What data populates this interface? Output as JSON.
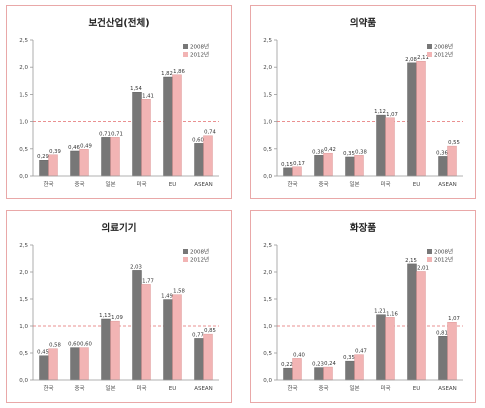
{
  "legend": {
    "labels": [
      "2008년",
      "2012년"
    ]
  },
  "colors": {
    "s2008": "#777777",
    "s2012": "#f2b4b4",
    "border": "#e9a8a8",
    "refline": "#e36c6c",
    "axis": "#999999"
  },
  "chart_data": [
    {
      "type": "bar",
      "title": "보건산업(전체)",
      "categories": [
        "한국",
        "중국",
        "일본",
        "미국",
        "EU",
        "ASEAN"
      ],
      "series": [
        {
          "name": "2008년",
          "values": [
            0.29,
            0.46,
            0.71,
            1.54,
            1.82,
            0.6
          ]
        },
        {
          "name": "2012년",
          "values": [
            0.39,
            0.49,
            0.71,
            1.41,
            1.86,
            0.74
          ]
        }
      ],
      "value_labels": [
        [
          "0,29",
          "0,46",
          "0,71",
          "1,54",
          "1,82",
          "0,60"
        ],
        [
          "0,39",
          "0,49",
          "0,71",
          "1,41",
          "1,86",
          "0,74"
        ]
      ],
      "yticks": [
        "0,0",
        "0,5",
        "1,0",
        "1,5",
        "2,0",
        "2,5"
      ],
      "ylim": [
        0,
        2.5
      ],
      "reference_line": 1.0,
      "legend_position": "top-right",
      "grid": false
    },
    {
      "type": "bar",
      "title": "의약품",
      "categories": [
        "한국",
        "중국",
        "일본",
        "미국",
        "EU",
        "ASEAN"
      ],
      "series": [
        {
          "name": "2008년",
          "values": [
            0.15,
            0.38,
            0.35,
            1.12,
            2.08,
            0.36
          ]
        },
        {
          "name": "2012년",
          "values": [
            0.17,
            0.42,
            0.38,
            1.07,
            2.11,
            0.55
          ]
        }
      ],
      "value_labels": [
        [
          "0,15",
          "0,38",
          "0,35",
          "1,12",
          "2,08",
          "0,36"
        ],
        [
          "0,17",
          "0,42",
          "0,38",
          "1,07",
          "2,11",
          "0,55"
        ]
      ],
      "yticks": [
        "0,0",
        "0,5",
        "1,0",
        "1,5",
        "2,0",
        "2,5"
      ],
      "ylim": [
        0,
        2.5
      ],
      "reference_line": 1.0,
      "legend_position": "top-right",
      "grid": false
    },
    {
      "type": "bar",
      "title": "의료기기",
      "categories": [
        "한국",
        "중국",
        "일본",
        "미국",
        "EU",
        "ASEAN"
      ],
      "series": [
        {
          "name": "2008년",
          "values": [
            0.45,
            0.6,
            1.13,
            2.03,
            1.49,
            0.77
          ]
        },
        {
          "name": "2012년",
          "values": [
            0.58,
            0.6,
            1.09,
            1.77,
            1.58,
            0.85
          ]
        }
      ],
      "value_labels": [
        [
          "0,45",
          "0,60",
          "1,13",
          "2,03",
          "1,49",
          "0,77"
        ],
        [
          "0,58",
          "0,60",
          "1,09",
          "1,77",
          "1,58",
          "0,85"
        ]
      ],
      "yticks": [
        "0,0",
        "0,5",
        "1,0",
        "1,5",
        "2,0",
        "2,5"
      ],
      "ylim": [
        0,
        2.5
      ],
      "reference_line": 1.0,
      "legend_position": "top-right",
      "grid": false
    },
    {
      "type": "bar",
      "title": "화장품",
      "categories": [
        "한국",
        "중국",
        "일본",
        "미국",
        "EU",
        "ASEAN"
      ],
      "series": [
        {
          "name": "2008년",
          "values": [
            0.22,
            0.23,
            0.35,
            1.21,
            2.15,
            0.81
          ]
        },
        {
          "name": "2012년",
          "values": [
            0.4,
            0.24,
            0.47,
            1.16,
            2.01,
            1.07
          ]
        }
      ],
      "value_labels": [
        [
          "0,22",
          "0,23",
          "0,35",
          "1,21",
          "2,15",
          "0,81"
        ],
        [
          "0,40",
          "0,24",
          "0,47",
          "1,16",
          "2,01",
          "1,07"
        ]
      ],
      "yticks": [
        "0,0",
        "0,5",
        "1,0",
        "1,5",
        "2,0",
        "2,5"
      ],
      "ylim": [
        0,
        2.5
      ],
      "reference_line": 1.0,
      "legend_position": "top-right",
      "grid": false
    }
  ]
}
